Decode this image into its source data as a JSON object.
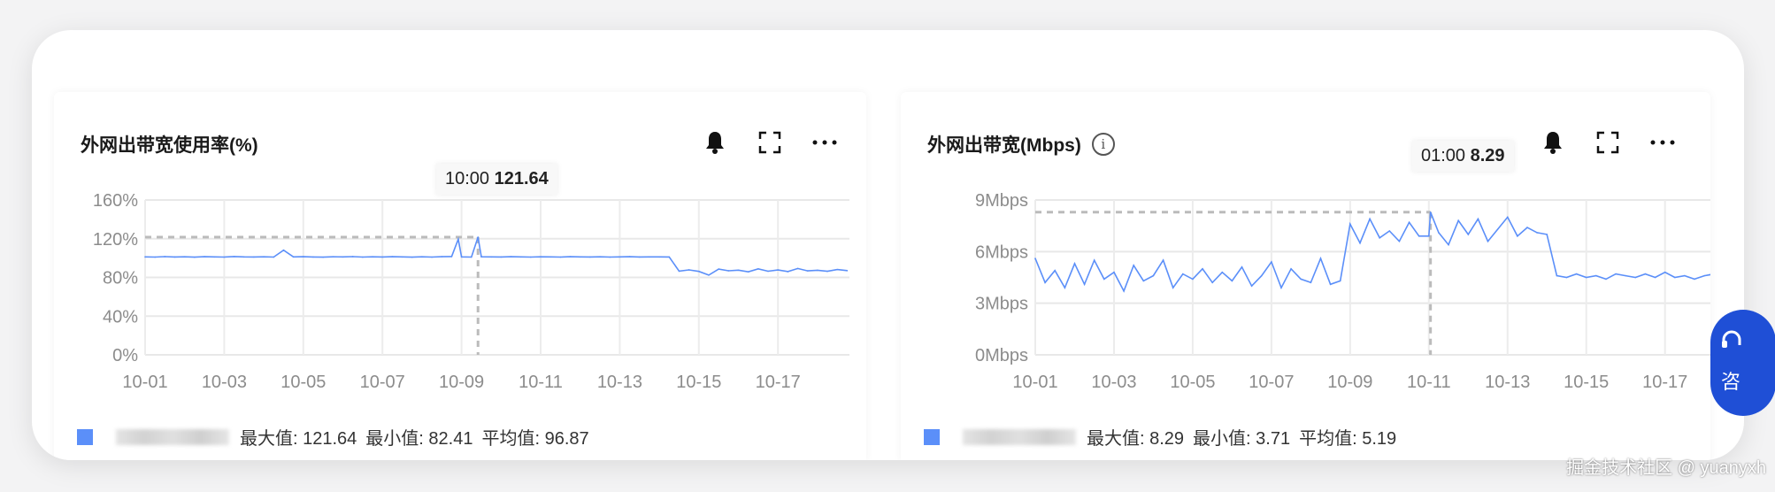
{
  "panels": [
    {
      "title": "外网出带宽使用率(%)",
      "has_info": false,
      "icons": [
        "bell-icon",
        "fullscreen-icon",
        "more-icon"
      ],
      "legend": {
        "color": "#5b8ff9",
        "max_label": "最大值: 121.64",
        "min_label": "最小值: 82.41",
        "avg_label": "平均值: 96.87"
      },
      "tooltip": {
        "time": "10:00",
        "value": "121.64"
      },
      "chart_data": {
        "type": "line",
        "y_ticks": [
          "0%",
          "40%",
          "80%",
          "120%",
          "160%"
        ],
        "ylim": [
          0,
          160
        ],
        "x_ticks": [
          "10-01",
          "10-03",
          "10-05",
          "10-07",
          "10-09",
          "10-11",
          "10-13",
          "10-15",
          "10-17"
        ],
        "xlim": [
          "10-01 00:00",
          "10-18 20:00"
        ],
        "grid": true,
        "line_color": "#5b8ff9",
        "tooltip_point": "10-09 10:00",
        "points": [
          [
            "10-01 00:00",
            101.2
          ],
          [
            "10-01 06:00",
            101.0
          ],
          [
            "10-01 12:00",
            101.5
          ],
          [
            "10-01 18:00",
            101.1
          ],
          [
            "10-02 00:00",
            101.3
          ],
          [
            "10-02 06:00",
            100.9
          ],
          [
            "10-02 12:00",
            101.4
          ],
          [
            "10-02 18:00",
            101.2
          ],
          [
            "10-03 00:00",
            101.0
          ],
          [
            "10-03 06:00",
            101.6
          ],
          [
            "10-03 12:00",
            101.2
          ],
          [
            "10-03 18:00",
            101.1
          ],
          [
            "10-04 00:00",
            101.3
          ],
          [
            "10-04 06:00",
            101.0
          ],
          [
            "10-04 12:00",
            108.2
          ],
          [
            "10-04 18:00",
            101.2
          ],
          [
            "10-05 00:00",
            101.4
          ],
          [
            "10-05 06:00",
            101.1
          ],
          [
            "10-05 12:00",
            100.9
          ],
          [
            "10-05 18:00",
            101.3
          ],
          [
            "10-06 00:00",
            101.2
          ],
          [
            "10-06 06:00",
            101.5
          ],
          [
            "10-06 12:00",
            101.0
          ],
          [
            "10-06 18:00",
            101.3
          ],
          [
            "10-07 00:00",
            101.1
          ],
          [
            "10-07 06:00",
            101.4
          ],
          [
            "10-07 12:00",
            101.2
          ],
          [
            "10-07 18:00",
            100.9
          ],
          [
            "10-08 00:00",
            101.3
          ],
          [
            "10-08 06:00",
            101.0
          ],
          [
            "10-08 12:00",
            101.4
          ],
          [
            "10-08 18:00",
            101.6
          ],
          [
            "10-08 22:00",
            119.5
          ],
          [
            "10-09 00:00",
            101.2
          ],
          [
            "10-09 06:00",
            101.0
          ],
          [
            "10-09 10:00",
            121.64
          ],
          [
            "10-09 12:00",
            101.3
          ],
          [
            "10-09 18:00",
            101.2
          ],
          [
            "10-10 00:00",
            101.1
          ],
          [
            "10-10 06:00",
            101.4
          ],
          [
            "10-10 12:00",
            101.2
          ],
          [
            "10-10 18:00",
            101.0
          ],
          [
            "10-11 00:00",
            101.3
          ],
          [
            "10-11 06:00",
            101.2
          ],
          [
            "10-11 12:00",
            101.0
          ],
          [
            "10-11 18:00",
            101.4
          ],
          [
            "10-12 00:00",
            101.2
          ],
          [
            "10-12 06:00",
            101.1
          ],
          [
            "10-12 12:00",
            101.3
          ],
          [
            "10-12 18:00",
            101.0
          ],
          [
            "10-13 00:00",
            101.2
          ],
          [
            "10-13 06:00",
            101.4
          ],
          [
            "10-13 12:00",
            101.1
          ],
          [
            "10-13 18:00",
            101.2
          ],
          [
            "10-14 00:00",
            101.2
          ],
          [
            "10-14 06:00",
            101.1
          ],
          [
            "10-14 12:00",
            86.5
          ],
          [
            "10-14 18:00",
            87.8
          ],
          [
            "10-15 00:00",
            86.2
          ],
          [
            "10-15 06:00",
            82.41
          ],
          [
            "10-15 12:00",
            88.6
          ],
          [
            "10-15 18:00",
            86.9
          ],
          [
            "10-16 00:00",
            87.5
          ],
          [
            "10-16 06:00",
            85.8
          ],
          [
            "10-16 12:00",
            88.9
          ],
          [
            "10-16 18:00",
            86.4
          ],
          [
            "10-17 00:00",
            87.7
          ],
          [
            "10-17 06:00",
            86.0
          ],
          [
            "10-17 12:00",
            89.2
          ],
          [
            "10-17 18:00",
            86.8
          ],
          [
            "10-18 00:00",
            87.4
          ],
          [
            "10-18 06:00",
            86.3
          ],
          [
            "10-18 12:00",
            88.1
          ],
          [
            "10-18 18:00",
            87.0
          ]
        ]
      }
    },
    {
      "title": "外网出带宽(Mbps)",
      "has_info": true,
      "icons": [
        "bell-icon",
        "fullscreen-icon",
        "more-icon"
      ],
      "legend": {
        "color": "#5b8ff9",
        "max_label": "最大值: 8.29",
        "min_label": "最小值: 3.71",
        "avg_label": "平均值: 5.19"
      },
      "tooltip": {
        "time": "01:00",
        "value": "8.29"
      },
      "chart_data": {
        "type": "line",
        "y_ticks": [
          "0Mbps",
          "3Mbps",
          "6Mbps",
          "9Mbps"
        ],
        "ylim": [
          0,
          9
        ],
        "x_ticks": [
          "10-01",
          "10-03",
          "10-05",
          "10-07",
          "10-09",
          "10-11",
          "10-13",
          "10-15",
          "10-17"
        ],
        "xlim": [
          "10-01 00:00",
          "10-18 20:00"
        ],
        "grid": true,
        "line_color": "#5b8ff9",
        "tooltip_point": "10-11 01:00",
        "points": [
          [
            "10-01 00:00",
            5.6
          ],
          [
            "10-01 06:00",
            4.2
          ],
          [
            "10-01 12:00",
            4.9
          ],
          [
            "10-01 18:00",
            3.9
          ],
          [
            "10-02 00:00",
            5.3
          ],
          [
            "10-02 06:00",
            4.1
          ],
          [
            "10-02 12:00",
            5.5
          ],
          [
            "10-02 18:00",
            4.4
          ],
          [
            "10-03 00:00",
            4.8
          ],
          [
            "10-03 06:00",
            3.71
          ],
          [
            "10-03 12:00",
            5.2
          ],
          [
            "10-03 18:00",
            4.3
          ],
          [
            "10-04 00:00",
            4.6
          ],
          [
            "10-04 06:00",
            5.5
          ],
          [
            "10-04 12:00",
            3.9
          ],
          [
            "10-04 18:00",
            4.7
          ],
          [
            "10-05 00:00",
            4.4
          ],
          [
            "10-05 06:00",
            5.0
          ],
          [
            "10-05 12:00",
            4.2
          ],
          [
            "10-05 18:00",
            4.8
          ],
          [
            "10-06 00:00",
            4.3
          ],
          [
            "10-06 06:00",
            5.1
          ],
          [
            "10-06 12:00",
            4.0
          ],
          [
            "10-06 18:00",
            4.6
          ],
          [
            "10-07 00:00",
            5.4
          ],
          [
            "10-07 06:00",
            3.9
          ],
          [
            "10-07 12:00",
            5.0
          ],
          [
            "10-07 18:00",
            4.4
          ],
          [
            "10-08 00:00",
            4.2
          ],
          [
            "10-08 06:00",
            5.6
          ],
          [
            "10-08 12:00",
            4.1
          ],
          [
            "10-08 18:00",
            4.3
          ],
          [
            "10-09 00:00",
            7.6
          ],
          [
            "10-09 06:00",
            6.5
          ],
          [
            "10-09 12:00",
            7.9
          ],
          [
            "10-09 18:00",
            6.8
          ],
          [
            "10-10 00:00",
            7.2
          ],
          [
            "10-10 06:00",
            6.6
          ],
          [
            "10-10 12:00",
            7.7
          ],
          [
            "10-10 18:00",
            6.9
          ],
          [
            "10-11 00:00",
            6.9
          ],
          [
            "10-11 01:00",
            8.29
          ],
          [
            "10-11 06:00",
            7.1
          ],
          [
            "10-11 12:00",
            6.4
          ],
          [
            "10-11 18:00",
            7.8
          ],
          [
            "10-12 00:00",
            7.0
          ],
          [
            "10-12 06:00",
            7.9
          ],
          [
            "10-12 12:00",
            6.6
          ],
          [
            "10-12 18:00",
            7.3
          ],
          [
            "10-13 00:00",
            8.0
          ],
          [
            "10-13 06:00",
            6.9
          ],
          [
            "10-13 12:00",
            7.4
          ],
          [
            "10-13 18:00",
            7.1
          ],
          [
            "10-14 00:00",
            7.0
          ],
          [
            "10-14 06:00",
            4.6
          ],
          [
            "10-14 12:00",
            4.5
          ],
          [
            "10-14 18:00",
            4.7
          ],
          [
            "10-15 00:00",
            4.5
          ],
          [
            "10-15 06:00",
            4.6
          ],
          [
            "10-15 12:00",
            4.4
          ],
          [
            "10-15 18:00",
            4.7
          ],
          [
            "10-16 00:00",
            4.6
          ],
          [
            "10-16 06:00",
            4.5
          ],
          [
            "10-16 12:00",
            4.7
          ],
          [
            "10-16 18:00",
            4.5
          ],
          [
            "10-17 00:00",
            4.8
          ],
          [
            "10-17 06:00",
            4.5
          ],
          [
            "10-17 12:00",
            4.6
          ],
          [
            "10-17 18:00",
            4.4
          ],
          [
            "10-18 00:00",
            4.6
          ],
          [
            "10-18 06:00",
            4.7
          ],
          [
            "10-18 12:00",
            4.5
          ],
          [
            "10-18 18:00",
            4.6
          ]
        ]
      }
    }
  ],
  "float_button": {
    "label": "咨"
  },
  "watermark": "掘金技术社区 @ yuanyxh"
}
